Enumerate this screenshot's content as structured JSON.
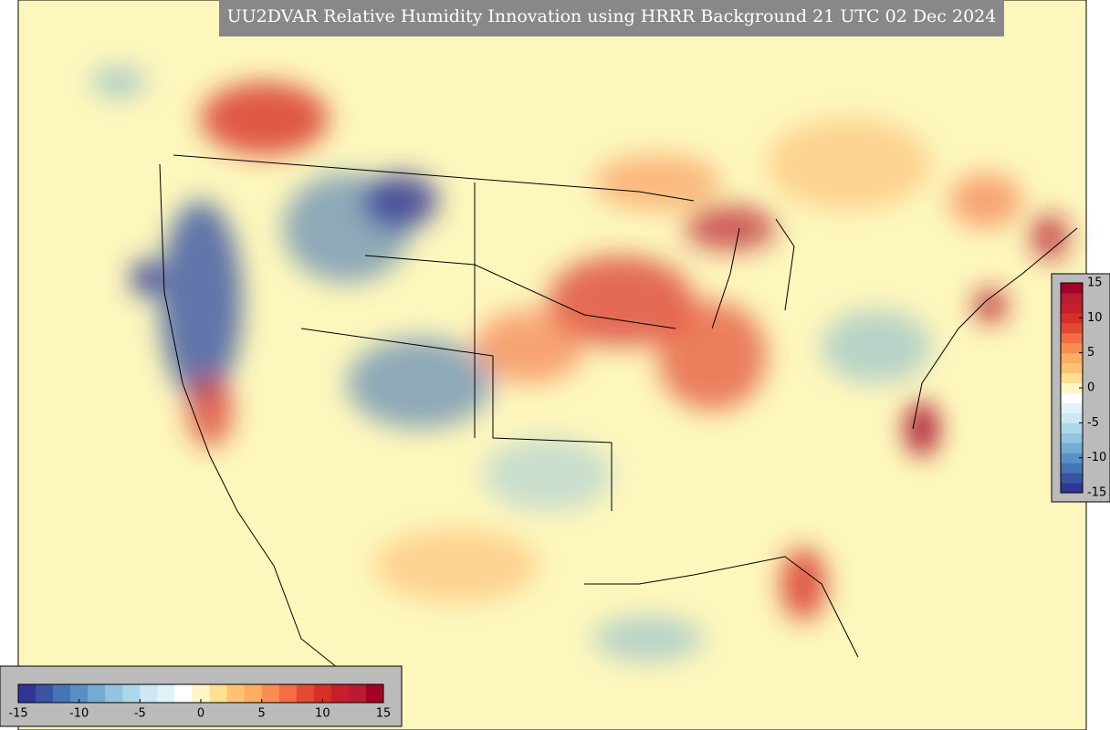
{
  "title": "UU2DVAR Relative Humidity Innovation using HRRR Background 21 UTC 02 Dec 2024",
  "colorbar": {
    "range": [
      -15,
      15
    ],
    "ticks": [
      -15,
      -10,
      -5,
      0,
      5,
      10,
      15
    ],
    "colors": [
      "#313695",
      "#3a54a4",
      "#4575b4",
      "#5b8fc4",
      "#74add1",
      "#94c4de",
      "#abd9e9",
      "#cde8f1",
      "#e0f3f8",
      "#ffffff",
      "#fff6c8",
      "#fee090",
      "#fdc274",
      "#fdae61",
      "#f88d52",
      "#f46d43",
      "#e34a33",
      "#d73027",
      "#c41f2b",
      "#b81c2e",
      "#a50026"
    ]
  }
}
